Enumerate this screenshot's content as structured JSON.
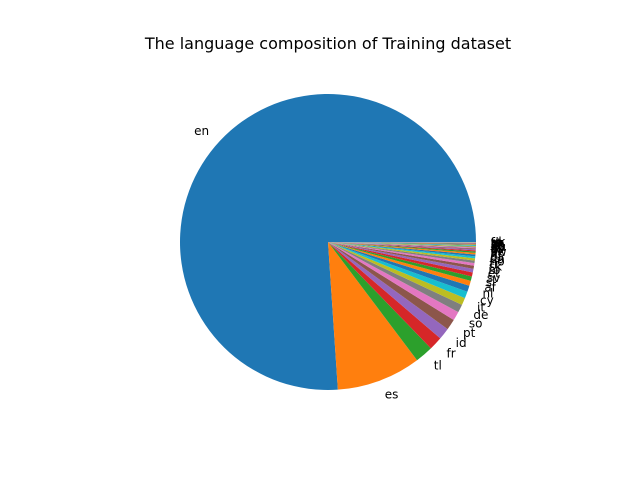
{
  "chart_data": {
    "type": "pie",
    "title": "The language composition of Training dataset",
    "start_angle_deg": 0,
    "direction": "counterclockwise",
    "slices": [
      {
        "label": "en",
        "value": 77.6
      },
      {
        "label": "es",
        "value": 9.4
      },
      {
        "label": "tl",
        "value": 2.0
      },
      {
        "label": "fr",
        "value": 1.5
      },
      {
        "label": "id",
        "value": 1.3
      },
      {
        "label": "pt",
        "value": 1.2
      },
      {
        "label": "so",
        "value": 1.0
      },
      {
        "label": "de",
        "value": 0.9
      },
      {
        "label": "it",
        "value": 0.8
      },
      {
        "label": "cy",
        "value": 0.75
      },
      {
        "label": "nl",
        "value": 0.7
      },
      {
        "label": "af",
        "value": 0.55
      },
      {
        "label": "sl",
        "value": 0.5
      },
      {
        "label": "sv",
        "value": 0.45
      },
      {
        "label": "et",
        "value": 0.4
      },
      {
        "label": "ro",
        "value": 0.35
      },
      {
        "label": "sk",
        "value": 0.3
      },
      {
        "label": "tr",
        "value": 0.27
      },
      {
        "label": "no",
        "value": 0.25
      },
      {
        "label": "da",
        "value": 0.22
      },
      {
        "label": "ca",
        "value": 0.2
      },
      {
        "label": "hr",
        "value": 0.18
      },
      {
        "label": "lt",
        "value": 0.15
      },
      {
        "label": "sw",
        "value": 0.13
      },
      {
        "label": "pl",
        "value": 0.12
      },
      {
        "label": "fi",
        "value": 0.1
      },
      {
        "label": "cs",
        "value": 0.1
      },
      {
        "label": "vi",
        "value": 0.08
      },
      {
        "label": "hu",
        "value": 0.08
      },
      {
        "label": "ko",
        "value": 0.07
      },
      {
        "label": "lv",
        "value": 0.06
      },
      {
        "label": "ch",
        "value": 0.05
      },
      {
        "label": "sq",
        "value": 0.05
      },
      {
        "label": "zh",
        "value": 0.04
      },
      {
        "label": "ja",
        "value": 0.04
      },
      {
        "label": "ar",
        "value": 0.03
      },
      {
        "label": "ru",
        "value": 0.03
      },
      {
        "label": "fa",
        "value": 0.03
      },
      {
        "label": "th",
        "value": 0.02
      },
      {
        "label": "uk",
        "value": 0.02
      }
    ],
    "colors": [
      "#1f77b4",
      "#ff7f0e",
      "#2ca02c",
      "#d62728",
      "#9467bd",
      "#8c564b",
      "#e377c2",
      "#7f7f7f",
      "#bcbd22",
      "#17becf"
    ]
  }
}
